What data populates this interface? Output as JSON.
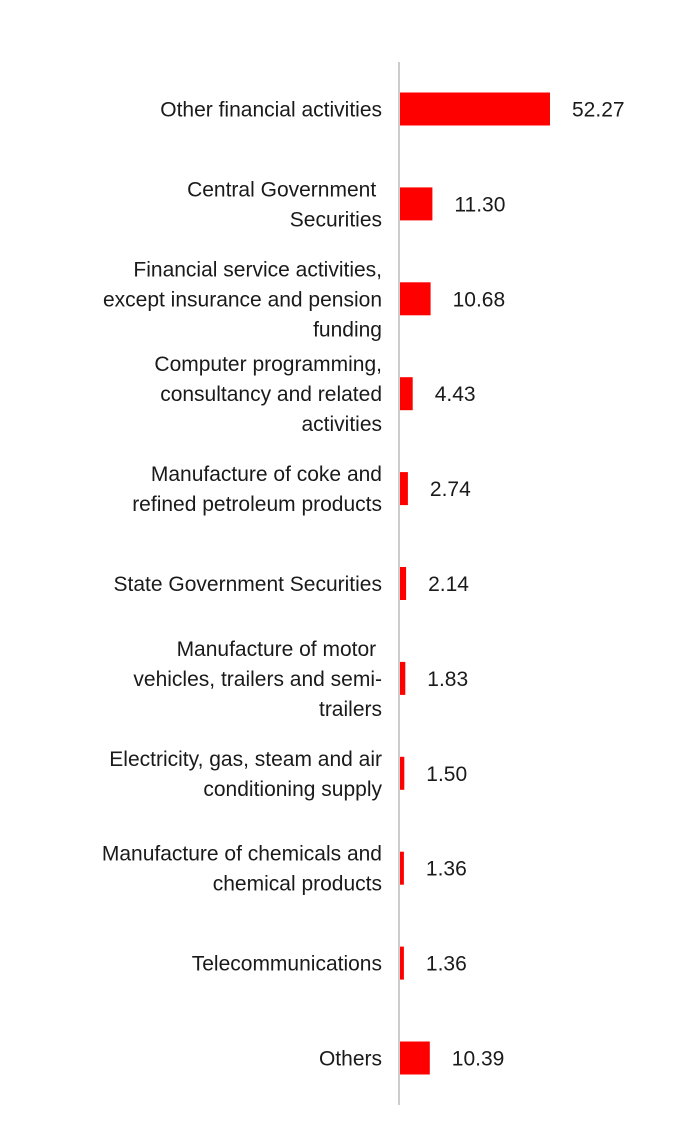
{
  "chart_data": {
    "type": "bar",
    "orientation": "horizontal",
    "title": "",
    "xlabel": "",
    "ylabel": "",
    "xlim": [
      0,
      60
    ],
    "grid": false,
    "legend": "none",
    "bar_color": "#ff0000",
    "axis_color": "#cccccc",
    "categories": [
      [
        "Other financial activities"
      ],
      [
        "Central Government ",
        "Securities"
      ],
      [
        "Financial service activities,",
        "except insurance and pension",
        "funding "
      ],
      [
        "Computer programming,",
        "consultancy and related",
        "activities "
      ],
      [
        "Manufacture of coke and",
        "refined petroleum products "
      ],
      [
        "State Government Securities"
      ],
      [
        "Manufacture of motor ",
        "vehicles, trailers and semi-",
        "trailers "
      ],
      [
        "Electricity, gas, steam and air",
        "conditioning supply "
      ],
      [
        "Manufacture of chemicals and",
        "chemical products"
      ],
      [
        "Telecommunications"
      ],
      [
        "Others "
      ]
    ],
    "values": [
      52.27,
      11.3,
      10.68,
      4.43,
      2.74,
      2.14,
      1.83,
      1.5,
      1.36,
      1.36,
      10.39
    ],
    "value_labels": [
      "52.27",
      "11.30",
      "10.68",
      "4.43",
      "2.74",
      "2.14",
      "1.83",
      "1.50",
      "1.36",
      "1.36",
      "10.39"
    ]
  }
}
